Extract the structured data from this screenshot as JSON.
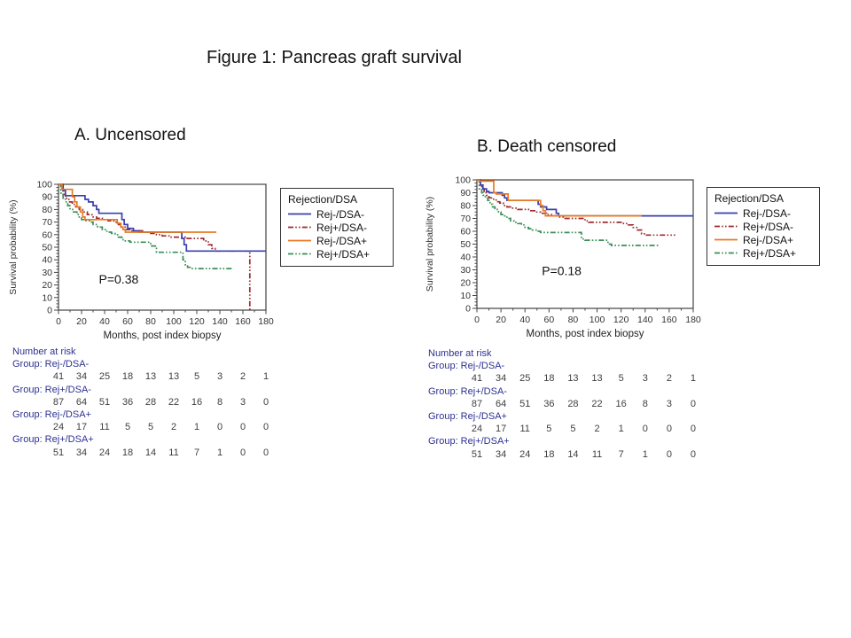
{
  "slide": {
    "title": "Figure 1: Pancreas graft survival"
  },
  "colors": {
    "blue": "#3a3fae",
    "dark_red": "#9e2b2e",
    "orange": "#e87a22",
    "green": "#3a8f55",
    "risk_text": "#2e3192",
    "axis": "#444444",
    "number_text": "#3f3f3f"
  },
  "legend": {
    "title": "Rejection/DSA",
    "entries": [
      {
        "label": "Rej-/DSA-",
        "color_key": "blue",
        "dash": "solid"
      },
      {
        "label": "Rej+/DSA-",
        "color_key": "dark_red",
        "dash": "dashdot"
      },
      {
        "label": "Rej-/DSA+",
        "color_key": "orange",
        "dash": "solid"
      },
      {
        "label": "Rej+/DSA+",
        "color_key": "green",
        "dash": "dashdot"
      }
    ]
  },
  "risk_table": {
    "heading": "Number at risk",
    "months": [
      0,
      20,
      40,
      60,
      80,
      100,
      120,
      140,
      160,
      180
    ],
    "groups": [
      {
        "label": "Group: Rej-/DSA-",
        "counts": [
          41,
          34,
          25,
          18,
          13,
          13,
          5,
          3,
          2,
          1
        ]
      },
      {
        "label": "Group: Rej+/DSA-",
        "counts": [
          87,
          64,
          51,
          36,
          28,
          22,
          16,
          8,
          3,
          0
        ]
      },
      {
        "label": "Group: Rej-/DSA+",
        "counts": [
          24,
          17,
          11,
          5,
          5,
          2,
          1,
          0,
          0,
          0
        ]
      },
      {
        "label": "Group: Rej+/DSA+",
        "counts": [
          51,
          34,
          24,
          18,
          14,
          11,
          7,
          1,
          0,
          0
        ]
      }
    ]
  },
  "chart_data": [
    {
      "type": "line",
      "panel": "A",
      "heading": "A. Uncensored",
      "p_value": "P=0.38",
      "xlabel": "Months, post index biopsy",
      "ylabel": "Survival probability (%)",
      "xlim": [
        0,
        180
      ],
      "ylim": [
        0,
        100
      ],
      "x_tick_step": 20,
      "y_tick_step": 10,
      "series": [
        {
          "name": "Rej-/DSA-",
          "color_key": "blue",
          "dash": "solid",
          "points": [
            [
              0,
              100
            ],
            [
              4,
              95
            ],
            [
              6,
              91
            ],
            [
              20,
              91
            ],
            [
              23,
              88
            ],
            [
              26,
              86
            ],
            [
              30,
              83
            ],
            [
              33,
              80
            ],
            [
              35,
              77
            ],
            [
              52,
              77
            ],
            [
              55,
              72
            ],
            [
              57,
              68
            ],
            [
              60,
              65
            ],
            [
              65,
              63
            ],
            [
              70,
              62
            ],
            [
              104,
              62
            ],
            [
              107,
              57
            ],
            [
              109,
              52
            ],
            [
              111,
              47
            ],
            [
              180,
              47
            ]
          ]
        },
        {
          "name": "Rej+/DSA-",
          "color_key": "dark_red",
          "dash": "dashdot",
          "points": [
            [
              0,
              100
            ],
            [
              2,
              96
            ],
            [
              4,
              92
            ],
            [
              6,
              89
            ],
            [
              9,
              86
            ],
            [
              12,
              84
            ],
            [
              15,
              82
            ],
            [
              18,
              80
            ],
            [
              21,
              78
            ],
            [
              25,
              76
            ],
            [
              29,
              74
            ],
            [
              33,
              73
            ],
            [
              38,
              72
            ],
            [
              43,
              71
            ],
            [
              48,
              70
            ],
            [
              52,
              68
            ],
            [
              55,
              66
            ],
            [
              58,
              64
            ],
            [
              62,
              63
            ],
            [
              74,
              62
            ],
            [
              80,
              61
            ],
            [
              85,
              60
            ],
            [
              90,
              59
            ],
            [
              97,
              58
            ],
            [
              110,
              57
            ],
            [
              126,
              55
            ],
            [
              130,
              52
            ],
            [
              133,
              49
            ],
            [
              136,
              47
            ],
            [
              165,
              47
            ],
            [
              166,
              0
            ]
          ]
        },
        {
          "name": "Rej-/DSA+",
          "color_key": "orange",
          "dash": "solid",
          "points": [
            [
              0,
              100
            ],
            [
              3,
              96
            ],
            [
              10,
              96
            ],
            [
              12,
              90
            ],
            [
              14,
              86
            ],
            [
              16,
              82
            ],
            [
              19,
              78
            ],
            [
              21,
              74
            ],
            [
              23,
              72
            ],
            [
              48,
              72
            ],
            [
              51,
              69
            ],
            [
              54,
              66
            ],
            [
              56,
              64
            ],
            [
              58,
              62
            ],
            [
              137,
              62
            ]
          ]
        },
        {
          "name": "Rej+/DSA+",
          "color_key": "green",
          "dash": "dashdot",
          "points": [
            [
              0,
              100
            ],
            [
              2,
              93
            ],
            [
              4,
              89
            ],
            [
              6,
              86
            ],
            [
              8,
              83
            ],
            [
              10,
              80
            ],
            [
              13,
              78
            ],
            [
              16,
              76
            ],
            [
              18,
              74
            ],
            [
              20,
              72
            ],
            [
              23,
              71
            ],
            [
              28,
              70
            ],
            [
              30,
              68
            ],
            [
              34,
              66
            ],
            [
              38,
              64
            ],
            [
              42,
              62
            ],
            [
              46,
              61
            ],
            [
              49,
              60
            ],
            [
              52,
              58
            ],
            [
              55,
              56
            ],
            [
              58,
              55
            ],
            [
              62,
              54
            ],
            [
              80,
              51
            ],
            [
              85,
              46
            ],
            [
              108,
              40
            ],
            [
              110,
              36
            ],
            [
              112,
              34
            ],
            [
              115,
              33
            ],
            [
              152,
              33
            ]
          ]
        }
      ]
    },
    {
      "type": "line",
      "panel": "B",
      "heading": "B. Death censored",
      "p_value": "P=0.18",
      "xlabel": "Months, post index biopsy",
      "ylabel": "Survival probability (%)",
      "xlim": [
        0,
        180
      ],
      "ylim": [
        0,
        100
      ],
      "x_tick_step": 20,
      "y_tick_step": 10,
      "series": [
        {
          "name": "Rej-/DSA-",
          "color_key": "blue",
          "dash": "solid",
          "points": [
            [
              0,
              100
            ],
            [
              3,
              96
            ],
            [
              5,
              93
            ],
            [
              8,
              91
            ],
            [
              10,
              90
            ],
            [
              21,
              88
            ],
            [
              23,
              86
            ],
            [
              25,
              84
            ],
            [
              51,
              81
            ],
            [
              53,
              79
            ],
            [
              58,
              77
            ],
            [
              66,
              74
            ],
            [
              68,
              72
            ],
            [
              180,
              72
            ]
          ]
        },
        {
          "name": "Rej+/DSA-",
          "color_key": "dark_red",
          "dash": "dashdot",
          "points": [
            [
              0,
              100
            ],
            [
              2,
              96
            ],
            [
              4,
              93
            ],
            [
              6,
              90
            ],
            [
              8,
              88
            ],
            [
              10,
              86
            ],
            [
              13,
              85
            ],
            [
              16,
              83
            ],
            [
              19,
              82
            ],
            [
              22,
              80
            ],
            [
              25,
              79
            ],
            [
              29,
              78
            ],
            [
              34,
              77
            ],
            [
              43,
              76
            ],
            [
              48,
              75
            ],
            [
              53,
              74
            ],
            [
              58,
              73
            ],
            [
              63,
              72
            ],
            [
              68,
              71
            ],
            [
              72,
              70
            ],
            [
              90,
              68
            ],
            [
              93,
              67
            ],
            [
              122,
              66
            ],
            [
              126,
              65
            ],
            [
              130,
              63
            ],
            [
              133,
              61
            ],
            [
              137,
              58
            ],
            [
              140,
              57
            ],
            [
              165,
              57
            ]
          ]
        },
        {
          "name": "Rej-/DSA+",
          "color_key": "orange",
          "dash": "solid",
          "points": [
            [
              0,
              100
            ],
            [
              2,
              99
            ],
            [
              12,
              99
            ],
            [
              14,
              90
            ],
            [
              16,
              89
            ],
            [
              26,
              84
            ],
            [
              53,
              80
            ],
            [
              55,
              76
            ],
            [
              57,
              72
            ],
            [
              137,
              72
            ]
          ]
        },
        {
          "name": "Rej+/DSA+",
          "color_key": "green",
          "dash": "dashdot",
          "points": [
            [
              0,
              100
            ],
            [
              2,
              93
            ],
            [
              4,
              90
            ],
            [
              5,
              88
            ],
            [
              7,
              86
            ],
            [
              9,
              84
            ],
            [
              11,
              81
            ],
            [
              13,
              79
            ],
            [
              15,
              77
            ],
            [
              18,
              75
            ],
            [
              20,
              73
            ],
            [
              23,
              72
            ],
            [
              25,
              70
            ],
            [
              28,
              68
            ],
            [
              31,
              67
            ],
            [
              34,
              66
            ],
            [
              37,
              65
            ],
            [
              40,
              63
            ],
            [
              43,
              62
            ],
            [
              46,
              61
            ],
            [
              50,
              60
            ],
            [
              53,
              59
            ],
            [
              87,
              54
            ],
            [
              90,
              53
            ],
            [
              109,
              50
            ],
            [
              112,
              49
            ],
            [
              152,
              49
            ]
          ]
        }
      ]
    }
  ]
}
